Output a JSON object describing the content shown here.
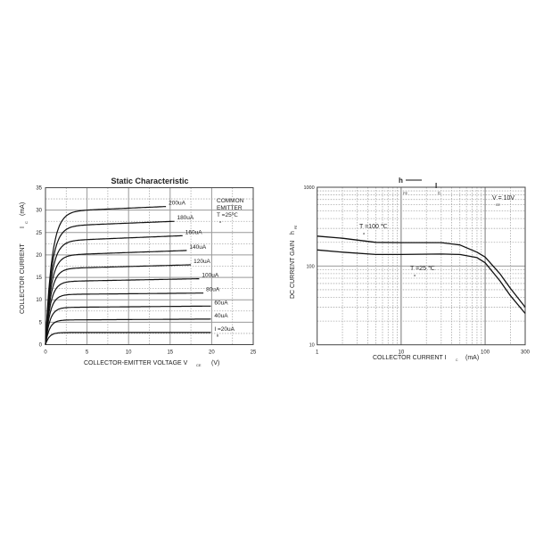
{
  "chart_data": [
    {
      "type": "line",
      "title": "Static Characteristic",
      "xlabel": "COLLECTOR-EMITTER VOLTAGE V",
      "xlabel_sub": "CE",
      "xlabel_unit": "(V)",
      "ylabel": "COLLECTOR CURRENT",
      "ylabel_sym": "I",
      "ylabel_sub": "C",
      "ylabel_unit": "(mA)",
      "xlim": [
        0,
        25
      ],
      "ylim": [
        0,
        35
      ],
      "xticks": [
        "0",
        "5",
        "10",
        "15",
        "20",
        "25"
      ],
      "yticks": [
        "0",
        "5",
        "10",
        "15",
        "20",
        "25",
        "30",
        "35"
      ],
      "grid": true,
      "annotation": [
        "COMMON",
        "EMITTER",
        "T =25℃"
      ],
      "annotation_sub": "a",
      "series": [
        {
          "name": "I =20uA",
          "name_sub": "B",
          "sat": 2.7,
          "end_v": 20,
          "end_i": 2.7
        },
        {
          "name": "40uA",
          "sat": 5.5,
          "end_v": 20,
          "end_i": 5.7
        },
        {
          "name": "60uA",
          "sat": 8.3,
          "end_v": 20,
          "end_i": 8.6
        },
        {
          "name": "80uA",
          "sat": 11.2,
          "end_v": 19,
          "end_i": 11.5
        },
        {
          "name": "100uA",
          "sat": 14.1,
          "end_v": 18.5,
          "end_i": 14.7
        },
        {
          "name": "120uA",
          "sat": 17.0,
          "end_v": 17.5,
          "end_i": 17.8
        },
        {
          "name": "140uA",
          "sat": 20.0,
          "end_v": 17,
          "end_i": 21.0
        },
        {
          "name": "160uA",
          "sat": 23.2,
          "end_v": 16.5,
          "end_i": 24.3
        },
        {
          "name": "180uA",
          "sat": 26.5,
          "end_v": 15.5,
          "end_i": 27.5
        },
        {
          "name": "200uA",
          "sat": 29.8,
          "end_v": 14.5,
          "end_i": 30.8
        }
      ]
    },
    {
      "type": "line",
      "title_parts": [
        "h",
        "FE",
        "I",
        "C"
      ],
      "xlabel": "COLLECTOR CURRENT I",
      "xlabel_sub": "C",
      "xlabel_unit": "(mA)",
      "ylabel": "DC CURRENT GAIN",
      "ylabel_sym": "h",
      "ylabel_sub": "FE",
      "xscale": "log",
      "yscale": "log",
      "xlim": [
        1,
        300
      ],
      "ylim": [
        10,
        1000
      ],
      "xticks": [
        "1",
        "10",
        "100",
        "300"
      ],
      "yticks": [
        "10",
        "100",
        "1000"
      ],
      "grid": true,
      "annotation": "V  = 10V",
      "annotation_sub": "CE",
      "series": [
        {
          "name": "T =100 ℃",
          "name_sub": "a",
          "x": [
            1,
            2,
            5,
            10,
            30,
            50,
            80,
            100,
            150,
            200,
            300
          ],
          "y": [
            240,
            225,
            200,
            198,
            198,
            185,
            150,
            130,
            80,
            52,
            30
          ]
        },
        {
          "name": "T =25 ℃",
          "name_sub": "a",
          "x": [
            1,
            2,
            5,
            10,
            30,
            50,
            80,
            100,
            150,
            200,
            300
          ],
          "y": [
            160,
            150,
            140,
            140,
            142,
            140,
            128,
            110,
            65,
            42,
            25
          ]
        }
      ]
    }
  ]
}
